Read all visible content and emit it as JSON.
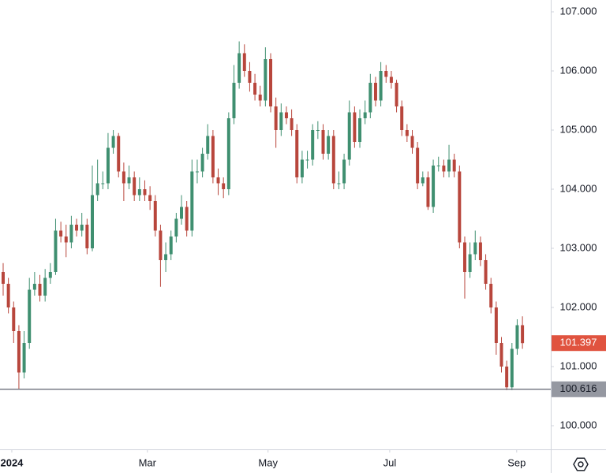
{
  "chart_data": {
    "type": "candlestick",
    "open": [
      102.6,
      102.4,
      102.0,
      101.6,
      100.9,
      101.4,
      102.3,
      102.4,
      102.2,
      102.5,
      102.6,
      103.3,
      103.2,
      103.1,
      103.4,
      103.3,
      103.4,
      103.0,
      103.9,
      104.1,
      104.1,
      104.7,
      104.9,
      104.3,
      104.1,
      104.2,
      103.9,
      104.0,
      103.9,
      103.8,
      103.3,
      102.8,
      102.9,
      103.2,
      103.5,
      103.7,
      103.3,
      104.3,
      104.3,
      104.6,
      104.9,
      104.2,
      104.1,
      104.0,
      105.2,
      105.8,
      106.3,
      106.0,
      105.8,
      105.6,
      105.5,
      106.2,
      105.4,
      105.0,
      105.3,
      105.2,
      105.0,
      104.2,
      104.5,
      104.5,
      105.0,
      105.0,
      104.6,
      104.9,
      104.1,
      104.1,
      104.5,
      105.3,
      104.8,
      105.2,
      105.3,
      105.8,
      105.5,
      106.0,
      105.9,
      105.8,
      105.4,
      105.0,
      104.9,
      104.7,
      104.1,
      104.2,
      103.7,
      104.4,
      104.4,
      104.3,
      104.5,
      104.3,
      103.1,
      102.6,
      102.9,
      103.1,
      102.8,
      102.4,
      102.0,
      101.4,
      101.0,
      100.65,
      101.3,
      101.7
    ],
    "high": [
      102.75,
      102.5,
      102.1,
      101.7,
      101.6,
      102.5,
      102.6,
      102.55,
      102.65,
      102.75,
      103.5,
      103.45,
      103.4,
      103.55,
      103.5,
      103.6,
      103.5,
      104.4,
      104.5,
      104.3,
      104.95,
      105.0,
      104.95,
      104.45,
      104.4,
      104.3,
      104.2,
      104.15,
      104.05,
      103.9,
      103.4,
      103.1,
      103.3,
      103.6,
      103.9,
      103.8,
      104.5,
      104.5,
      104.7,
      105.1,
      105.0,
      104.35,
      104.2,
      105.3,
      106.1,
      106.5,
      106.45,
      106.15,
      105.95,
      105.75,
      106.4,
      106.3,
      105.55,
      105.45,
      105.4,
      105.35,
      105.1,
      104.65,
      104.65,
      105.1,
      105.15,
      105.1,
      105.0,
      105.0,
      104.3,
      104.6,
      105.5,
      105.4,
      105.35,
      105.5,
      105.95,
      105.9,
      106.15,
      106.1,
      106.0,
      105.85,
      105.5,
      105.1,
      105.0,
      104.8,
      104.3,
      104.3,
      104.5,
      104.55,
      104.5,
      104.75,
      104.6,
      104.4,
      103.2,
      103.1,
      103.3,
      103.2,
      102.9,
      102.5,
      102.1,
      101.5,
      101.1,
      101.4,
      101.8,
      101.85
    ],
    "low": [
      102.2,
      101.9,
      101.4,
      100.62,
      100.8,
      101.3,
      102.2,
      102.1,
      102.1,
      102.4,
      102.55,
      103.1,
      102.85,
      103.0,
      103.2,
      103.2,
      102.9,
      102.95,
      103.8,
      104.0,
      104.0,
      104.6,
      104.2,
      103.8,
      104.0,
      103.8,
      103.8,
      103.8,
      103.65,
      103.2,
      102.35,
      102.6,
      102.8,
      103.1,
      103.4,
      103.2,
      103.2,
      104.1,
      104.2,
      104.5,
      104.1,
      103.9,
      103.85,
      103.9,
      105.1,
      105.7,
      105.9,
      105.65,
      105.5,
      105.4,
      105.4,
      105.3,
      104.7,
      104.9,
      105.1,
      104.9,
      104.1,
      104.1,
      104.35,
      104.4,
      104.85,
      104.5,
      104.5,
      104.0,
      104.0,
      104.0,
      104.4,
      104.7,
      104.7,
      105.1,
      105.2,
      105.4,
      105.4,
      105.8,
      105.7,
      105.3,
      104.9,
      104.8,
      104.6,
      104.0,
      104.05,
      103.65,
      103.6,
      104.3,
      104.2,
      104.2,
      104.2,
      103.0,
      102.15,
      102.5,
      102.8,
      102.7,
      102.3,
      101.9,
      101.2,
      100.9,
      100.6,
      100.6,
      101.2,
      101.3
    ],
    "close": [
      102.4,
      102.0,
      101.6,
      100.9,
      101.4,
      102.3,
      102.4,
      102.2,
      102.5,
      102.6,
      103.3,
      103.2,
      103.1,
      103.4,
      103.3,
      103.4,
      103.0,
      103.9,
      104.1,
      104.1,
      104.7,
      104.9,
      104.3,
      104.1,
      104.2,
      103.9,
      104.0,
      103.9,
      103.8,
      103.3,
      102.8,
      102.9,
      103.2,
      103.5,
      103.7,
      103.3,
      104.3,
      104.3,
      104.6,
      104.9,
      104.2,
      104.1,
      104.0,
      105.2,
      105.8,
      106.3,
      106.0,
      105.8,
      105.6,
      105.5,
      106.2,
      105.4,
      105.0,
      105.3,
      105.2,
      105.0,
      104.2,
      104.5,
      104.5,
      105.0,
      105.0,
      104.6,
      104.9,
      104.1,
      104.1,
      104.5,
      105.3,
      104.8,
      105.2,
      105.3,
      105.8,
      105.5,
      106.0,
      105.9,
      105.8,
      105.4,
      105.0,
      104.9,
      104.7,
      104.1,
      104.2,
      103.7,
      104.4,
      104.4,
      104.3,
      104.5,
      104.3,
      103.1,
      102.6,
      102.9,
      103.1,
      102.8,
      102.4,
      102.0,
      101.4,
      101.0,
      100.65,
      101.3,
      101.7,
      101.397
    ],
    "up_color": "#3f8f70",
    "down_color": "#b8463c",
    "xlim": [
      -0.6,
      104.4
    ],
    "xticks": [
      {
        "value": 1.65,
        "label": "2024"
      },
      {
        "value": 27.5,
        "label": "Mar"
      },
      {
        "value": 50.5,
        "label": "May"
      },
      {
        "value": 73.7,
        "label": "Jul"
      },
      {
        "value": 97.9,
        "label": "Sep"
      }
    ],
    "ylim": [
      99.6,
      107.2
    ],
    "yticks": [
      {
        "value": 100,
        "label": "100.000"
      },
      {
        "value": 101,
        "label": "101.000"
      },
      {
        "value": 102,
        "label": "102.000"
      },
      {
        "value": 103,
        "label": "103.000"
      },
      {
        "value": 104,
        "label": "104.000"
      },
      {
        "value": 105,
        "label": "105.000"
      },
      {
        "value": 106,
        "label": "106.000"
      },
      {
        "value": 107,
        "label": "107.000"
      }
    ],
    "hline": 100.616
  }
}
